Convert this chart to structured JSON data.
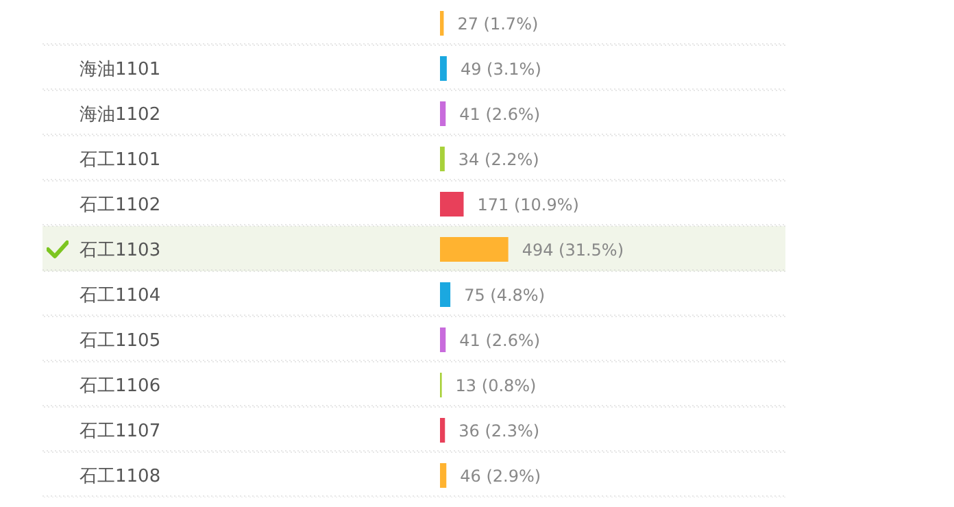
{
  "chart_data": {
    "type": "bar",
    "orientation": "horizontal",
    "categories": [
      null,
      "海油1101",
      "海油1102",
      "石工1101",
      "石工1102",
      "石工1103",
      "石工1104",
      "石工1105",
      "石工1106",
      "石工1107",
      "石工1108"
    ],
    "values": [
      27,
      49,
      41,
      34,
      171,
      494,
      75,
      41,
      13,
      36,
      46
    ],
    "colors": [
      "#ffb330",
      "#1ba8e0",
      "#c86bdc",
      "#a8d13a",
      "#e8405a",
      "#ffb330",
      "#1ba8e0",
      "#c86bdc",
      "#a8d13a",
      "#e8405a",
      "#ffb330"
    ],
    "value_labels": [
      "27 (1.7%)",
      "49 (3.1%)",
      "41 (2.6%)",
      "34 (2.2%)",
      "171 (10.9%)",
      "494 (31.5%)",
      "75 (4.8%)",
      "41 (2.6%)",
      "13 (0.8%)",
      "36 (2.3%)",
      "46 (2.9%)"
    ],
    "bands": [
      {
        "axis": "y",
        "from": "石工1103",
        "to": "石工1103",
        "color": "#f1f5e9"
      }
    ]
  }
}
